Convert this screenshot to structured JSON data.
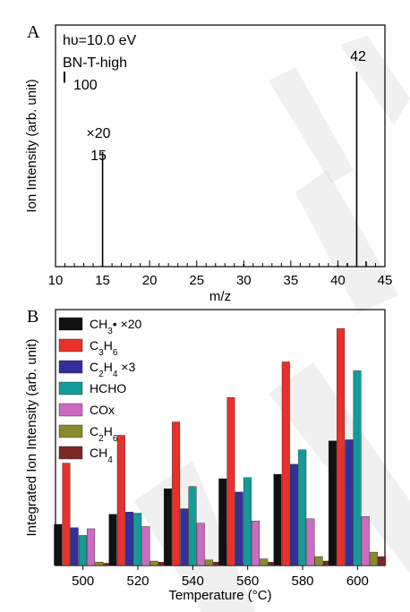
{
  "chart_data": [
    {
      "type": "bar",
      "panel_label": "A",
      "xlabel": "m/z",
      "ylabel": "Ion Intensity (arb. unit)",
      "xlim": [
        10,
        45
      ],
      "x_ticks": [
        "10",
        "15",
        "20",
        "25",
        "30",
        "35",
        "40",
        "45"
      ],
      "annotations": {
        "energy": "hυ=10.0 eV",
        "sample": "BN-T-high",
        "scalebar": "100",
        "mult": "×20",
        "peak15": "15",
        "peak42": "42"
      },
      "peaks": [
        {
          "mz": 15,
          "value": 128
        },
        {
          "mz": 30,
          "value": 3
        },
        {
          "mz": 40,
          "value": 2
        },
        {
          "mz": 41,
          "value": 4
        },
        {
          "mz": 42,
          "value": 218
        },
        {
          "mz": 43,
          "value": 6
        }
      ],
      "scalebar_value": 100
    },
    {
      "type": "bar",
      "panel_label": "B",
      "xlabel": "Temperature (°C)",
      "ylabel": "Integrated Ion Intensity (arb. unit)",
      "categories": [
        "500",
        "520",
        "540",
        "560",
        "580",
        "600"
      ],
      "series": [
        {
          "name_parts": [
            [
              "CH",
              ""
            ],
            [
              "3",
              "sub"
            ],
            [
              "• ×20",
              ""
            ]
          ],
          "color": "#111111",
          "values": [
            37,
            46,
            69,
            78,
            82,
            112
          ]
        },
        {
          "name_parts": [
            [
              "C",
              ""
            ],
            [
              "3",
              "sub"
            ],
            [
              "H",
              ""
            ],
            [
              "6",
              "sub"
            ]
          ],
          "color": "#e8312b",
          "values": [
            92,
            117,
            129,
            151,
            183,
            213
          ]
        },
        {
          "name_parts": [
            [
              "C",
              ""
            ],
            [
              "2",
              "sub"
            ],
            [
              "H",
              ""
            ],
            [
              "4",
              "sub"
            ],
            [
              " ×3",
              ""
            ]
          ],
          "color": "#34309a",
          "values": [
            34,
            48,
            51,
            66,
            91,
            113
          ]
        },
        {
          "name_parts": [
            [
              "HCHO",
              ""
            ]
          ],
          "color": "#149b97",
          "values": [
            27,
            47,
            71,
            79,
            104,
            175
          ]
        },
        {
          "name_parts": [
            [
              "COx",
              ""
            ]
          ],
          "color": "#cc6bc1",
          "values": [
            33,
            35,
            38,
            40,
            42,
            44
          ]
        },
        {
          "name_parts": [
            [
              "C",
              ""
            ],
            [
              "2",
              "sub"
            ],
            [
              "H",
              ""
            ],
            [
              "6",
              "sub"
            ]
          ],
          "color": "#8a8a2c",
          "values": [
            3,
            4,
            5,
            6,
            8,
            12
          ]
        },
        {
          "name_parts": [
            [
              "CH",
              ""
            ],
            [
              "4",
              "sub"
            ]
          ],
          "color": "#7a2a22",
          "values": [
            2,
            3,
            3,
            3,
            4,
            8
          ]
        }
      ],
      "ylim": [
        0,
        230
      ],
      "legend_position": "top-left"
    }
  ]
}
